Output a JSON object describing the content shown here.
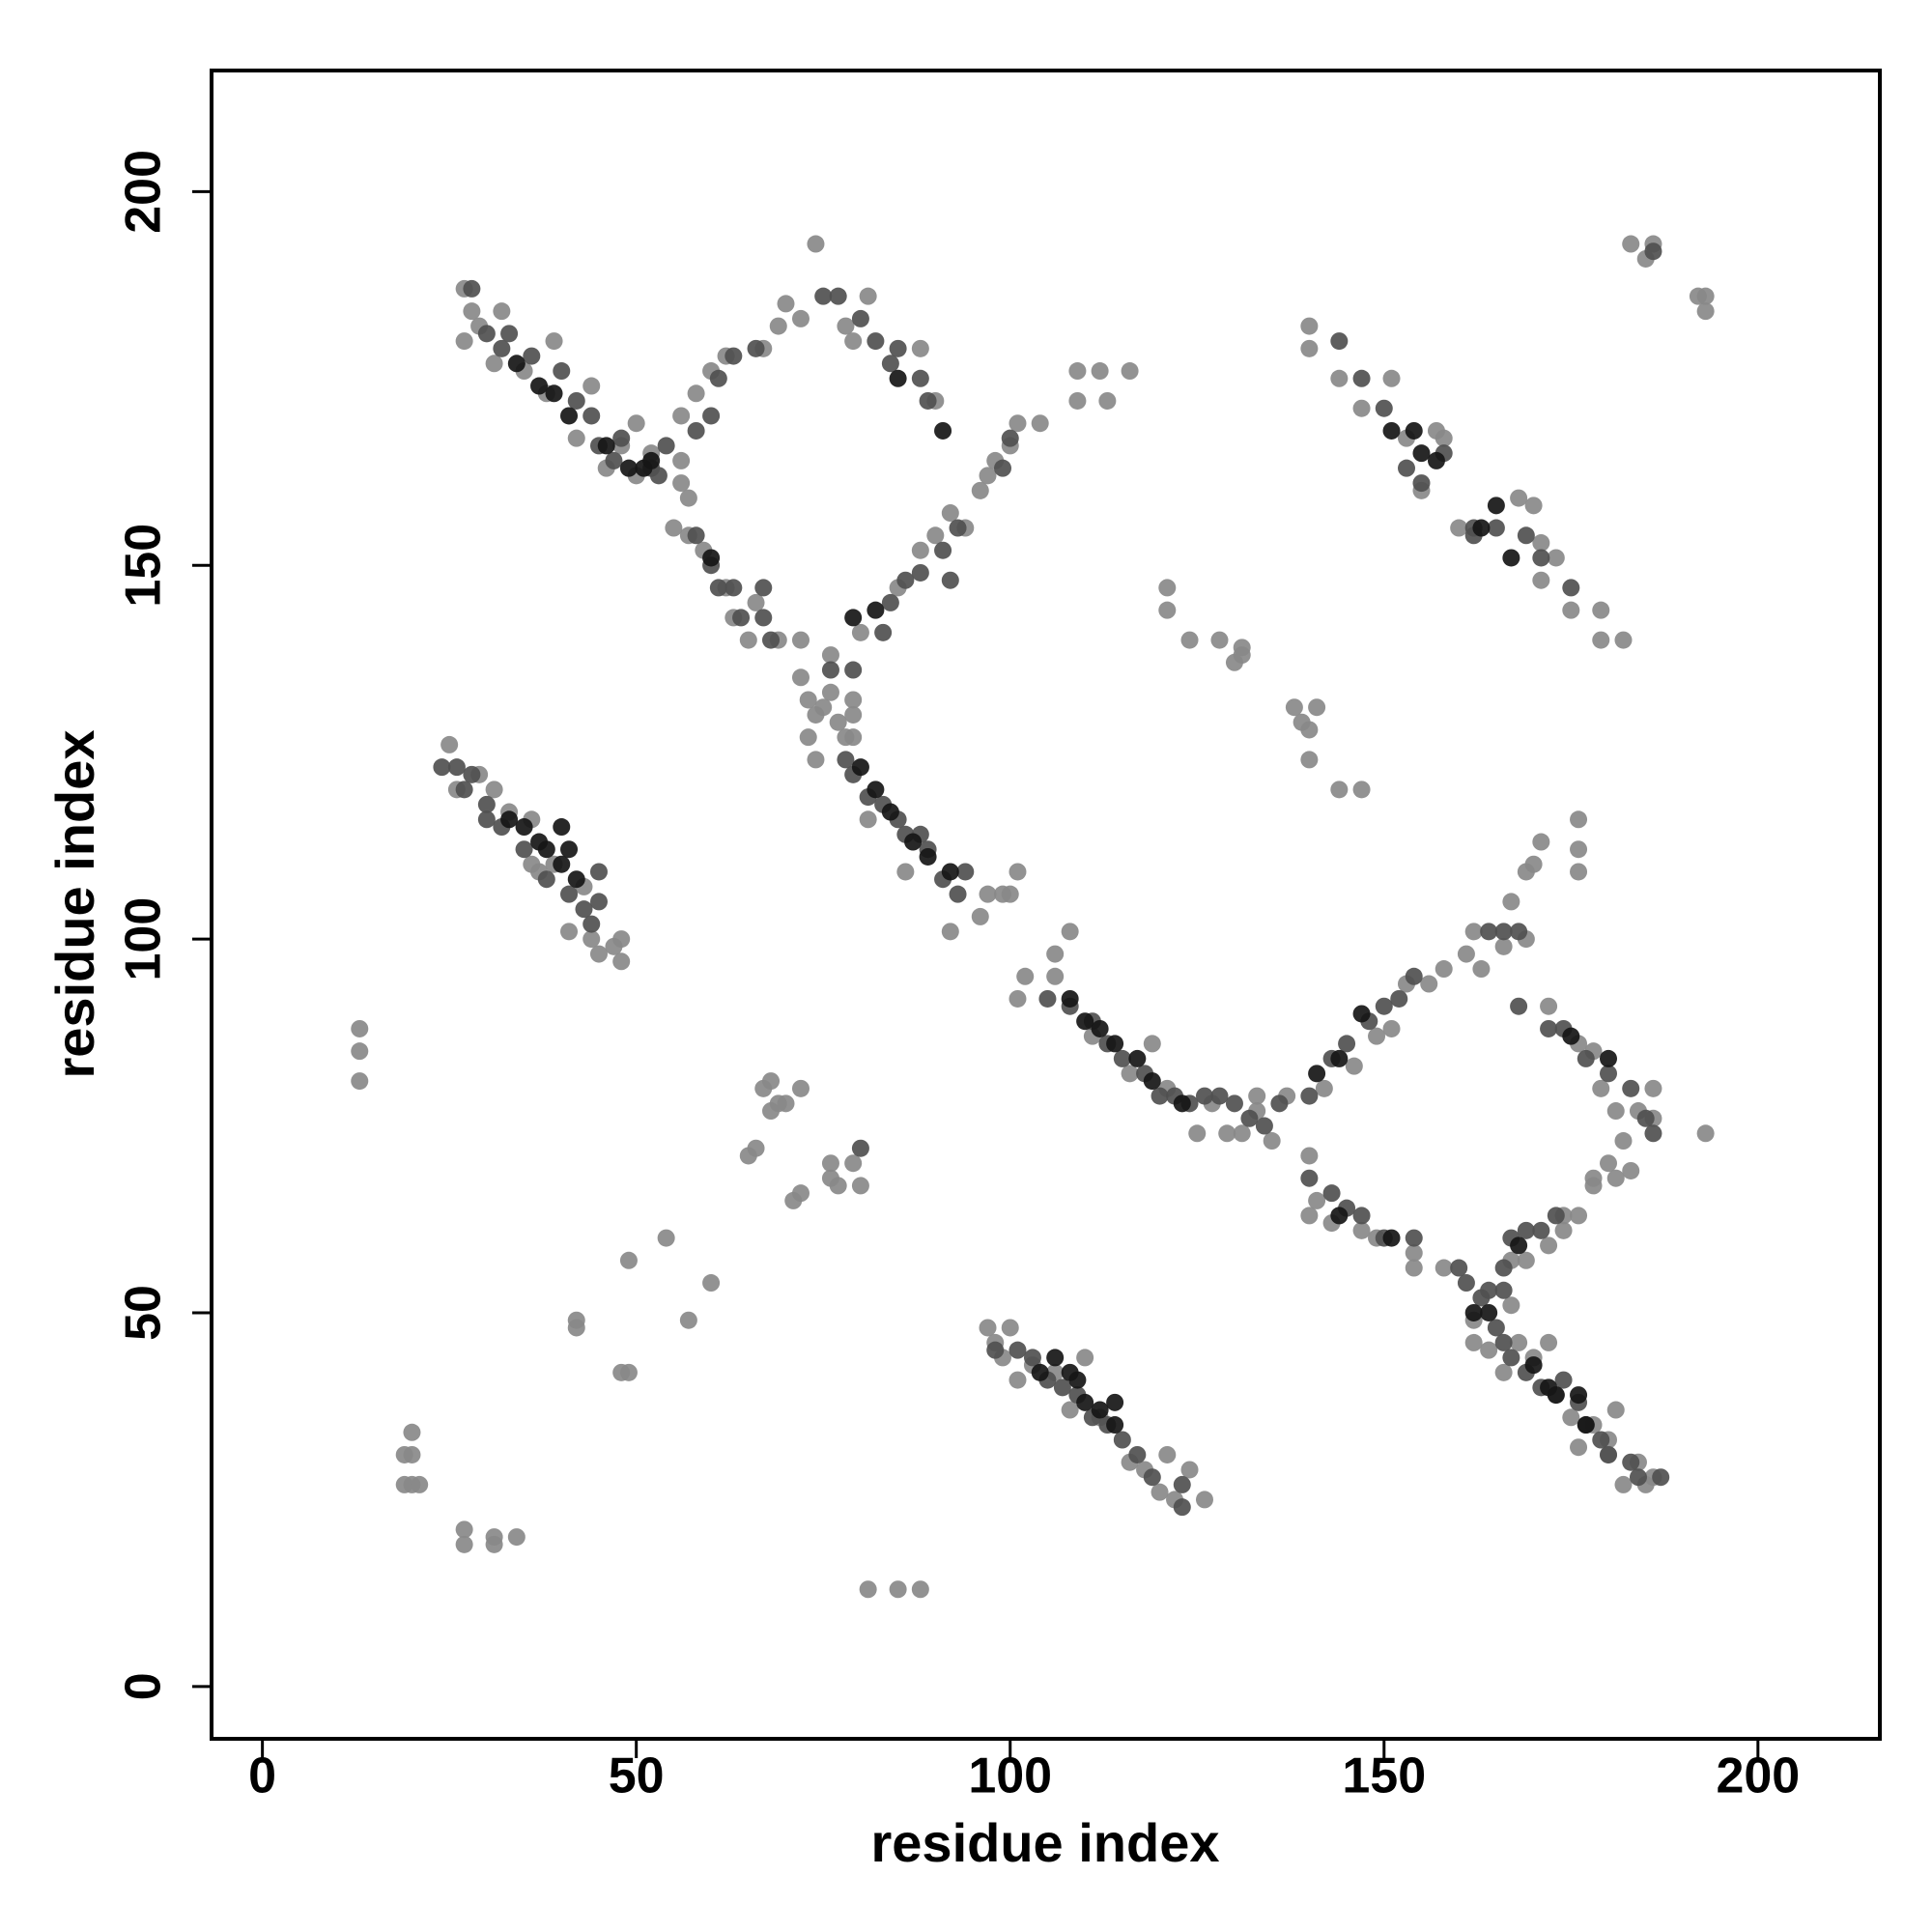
{
  "chart_data": {
    "type": "scatter",
    "xlabel": "residue index",
    "ylabel": "residue index",
    "xlim": [
      -6.8,
      216.3
    ],
    "ylim": [
      -7,
      216.2
    ],
    "xticks": [
      0,
      50,
      100,
      150,
      200
    ],
    "yticks": [
      0,
      50,
      100,
      150,
      200
    ],
    "series": [
      {
        "color": "#898989",
        "x": [
          27,
          28,
          27,
          29,
          31,
          32,
          35,
          39,
          38,
          42,
          44,
          46,
          48,
          50,
          52,
          56,
          57,
          56,
          50,
          56,
          58,
          60,
          62,
          67,
          69,
          70,
          72,
          74,
          78,
          81,
          79,
          88,
          90,
          85,
          88,
          90,
          92,
          94,
          96,
          97,
          98,
          100,
          101,
          104,
          109,
          112,
          116,
          109,
          113,
          80,
          55,
          57,
          59,
          62,
          63,
          65,
          69,
          72,
          66,
          72,
          73,
          74,
          73,
          74,
          76,
          76,
          77,
          78,
          79,
          79,
          79,
          75,
          81,
          86,
          92,
          96,
          97,
          99,
          101,
          100,
          102,
          101,
          106,
          106,
          108,
          111,
          116,
          119,
          121,
          125,
          127,
          129,
          131,
          133,
          135,
          137,
          133,
          142,
          146,
          149,
          151,
          153,
          156,
          158,
          161,
          162,
          163,
          166,
          167,
          169,
          170,
          171,
          176,
          176,
          176,
          169,
          172,
          176,
          178,
          179,
          181,
          182,
          184,
          186,
          186,
          193,
          180,
          181,
          183,
          140,
          141,
          140,
          143,
          147,
          149,
          154,
          154,
          158,
          162,
          162,
          164,
          166,
          167,
          169,
          172,
          174,
          176,
          178,
          178,
          174,
          167,
          168,
          170,
          172,
          173,
          175,
          176,
          178,
          180,
          182,
          184,
          185,
          186,
          181,
          180,
          97,
          98,
          99,
          100,
          101,
          103,
          106,
          108,
          112,
          116,
          118,
          120,
          122,
          121,
          124,
          126,
          110,
          25,
          26,
          29,
          31,
          33,
          36,
          37,
          39,
          41,
          44,
          45,
          47,
          48,
          48,
          43,
          36,
          140,
          140,
          144,
          151,
          147,
          153,
          155,
          157,
          158,
          160,
          170,
          168,
          171,
          173,
          171,
          175,
          179,
          182,
          179,
          183,
          185,
          186,
          192,
          193,
          193,
          13,
          13,
          13,
          20,
          20,
          19,
          20,
          19,
          21,
          27,
          27,
          31,
          31,
          34,
          49,
          48,
          49,
          54,
          57,
          60,
          42,
          42,
          65,
          66,
          67,
          68,
          69,
          68,
          70,
          72,
          71,
          72,
          76,
          76,
          77,
          79,
          80,
          81,
          85,
          88,
          121,
          121,
          124,
          128,
          131,
          130,
          131,
          138,
          139,
          141,
          140,
          140,
          144,
          147
        ],
        "y": [
          187,
          184,
          180,
          182,
          177,
          184,
          176,
          180,
          173,
          167,
          174,
          163,
          166,
          169,
          165,
          164,
          159,
          161,
          162,
          170,
          173,
          176,
          178,
          179,
          182,
          185,
          183,
          193,
          182,
          186,
          180,
          179,
          172,
          147,
          152,
          154,
          157,
          155,
          160,
          162,
          164,
          166,
          169,
          169,
          176,
          176,
          176,
          172,
          172,
          141,
          155,
          154,
          152,
          147,
          143,
          140,
          140,
          140,
          145,
          135,
          132,
          130,
          127,
          124,
          138,
          133,
          129,
          127,
          132,
          130,
          127,
          131,
          116,
          109,
          101,
          103,
          106,
          106,
          109,
          106,
          95,
          92,
          95,
          98,
          101,
          87,
          82,
          86,
          80,
          74,
          78,
          74,
          74,
          77,
          73,
          79,
          79,
          80,
          83,
          87,
          88,
          94,
          94,
          96,
          98,
          101,
          96,
          99,
          105,
          109,
          110,
          113,
          116,
          112,
          109,
          100,
          91,
          86,
          85,
          80,
          77,
          73,
          77,
          80,
          76,
          74,
          70,
          68,
          69,
          71,
          65,
          63,
          62,
          61,
          60,
          58,
          56,
          56,
          49,
          46,
          45,
          42,
          57,
          57,
          59,
          63,
          63,
          67,
          68,
          61,
          51,
          46,
          44,
          46,
          39,
          36,
          32,
          35,
          31,
          27,
          30,
          27,
          28,
          37,
          33,
          48,
          46,
          44,
          48,
          41,
          43,
          42,
          37,
          36,
          30,
          29,
          26,
          25,
          31,
          29,
          25,
          44,
          126,
          120,
          122,
          120,
          117,
          116,
          109,
          110,
          101,
          100,
          98,
          99,
          100,
          97,
          107,
          110,
          182,
          179,
          175,
          175,
          171,
          167,
          160,
          168,
          167,
          155,
          158,
          159,
          153,
          151,
          148,
          144,
          140,
          140,
          144,
          193,
          191,
          193,
          186,
          184,
          186,
          88,
          85,
          81,
          34,
          31,
          31,
          27,
          27,
          27,
          21,
          19,
          20,
          19,
          20,
          42,
          42,
          57,
          60,
          49,
          54,
          49,
          48,
          71,
          72,
          80,
          81,
          78,
          77,
          78,
          80,
          65,
          66,
          68,
          70,
          67,
          70,
          67,
          13,
          13,
          13,
          147,
          144,
          140,
          140,
          139,
          137,
          138,
          131,
          129,
          131,
          128,
          124,
          120,
          120
        ]
      },
      {
        "color": "#505050",
        "x": [
          28,
          30,
          32,
          33,
          36,
          40,
          42,
          44,
          45,
          47,
          48,
          52,
          54,
          53,
          58,
          60,
          61,
          63,
          66,
          75,
          77,
          80,
          82,
          84,
          85,
          88,
          89,
          83,
          84,
          86,
          88,
          91,
          93,
          99,
          100,
          92,
          58,
          60,
          61,
          63,
          64,
          67,
          67,
          68,
          76,
          79,
          78,
          79,
          81,
          83,
          85,
          86,
          88,
          89,
          91,
          93,
          94,
          105,
          108,
          111,
          113,
          115,
          118,
          120,
          122,
          124,
          126,
          128,
          130,
          132,
          134,
          136,
          140,
          143,
          145,
          148,
          150,
          152,
          154,
          164,
          166,
          168,
          168,
          172,
          174,
          177,
          180,
          183,
          185,
          186,
          140,
          143,
          145,
          147,
          150,
          154,
          160,
          161,
          163,
          165,
          166,
          164,
          166,
          167,
          169,
          171,
          173,
          166,
          167,
          169,
          171,
          174,
          176,
          177,
          179,
          180,
          183,
          184,
          187,
          98,
          101,
          103,
          105,
          107,
          109,
          111,
          113,
          115,
          117,
          119,
          123,
          123,
          24,
          26,
          27,
          28,
          30,
          30,
          32,
          35,
          38,
          41,
          43,
          44,
          45,
          45,
          144,
          147,
          150,
          155,
          153,
          162,
          165,
          169,
          171,
          175,
          162,
          158,
          186,
          80
        ],
        "y": [
          187,
          181,
          179,
          181,
          178,
          176,
          172,
          170,
          166,
          164,
          167,
          163,
          166,
          162,
          168,
          170,
          175,
          178,
          179,
          186,
          186,
          183,
          180,
          177,
          179,
          175,
          172,
          141,
          145,
          148,
          149,
          152,
          155,
          163,
          167,
          148,
          154,
          150,
          147,
          147,
          143,
          143,
          147,
          140,
          136,
          136,
          124,
          122,
          119,
          118,
          116,
          114,
          114,
          112,
          108,
          106,
          109,
          92,
          91,
          89,
          86,
          84,
          82,
          79,
          79,
          78,
          79,
          79,
          78,
          76,
          75,
          78,
          79,
          84,
          86,
          89,
          91,
          92,
          95,
          101,
          101,
          101,
          91,
          88,
          88,
          84,
          82,
          80,
          76,
          74,
          68,
          66,
          64,
          63,
          60,
          60,
          56,
          54,
          52,
          48,
          46,
          53,
          56,
          60,
          61,
          61,
          63,
          53,
          44,
          42,
          40,
          41,
          38,
          35,
          33,
          31,
          30,
          28,
          28,
          45,
          45,
          44,
          41,
          40,
          39,
          36,
          35,
          33,
          31,
          28,
          27,
          24,
          123,
          123,
          120,
          122,
          118,
          116,
          115,
          112,
          108,
          106,
          104,
          102,
          105,
          109,
          180,
          175,
          171,
          161,
          163,
          155,
          155,
          154,
          151,
          147,
          154,
          165,
          192,
          72
        ]
      },
      {
        "color": "#161616",
        "x": [
          34,
          37,
          39,
          41,
          46,
          49,
          51,
          52,
          85,
          91,
          79,
          82,
          60,
          80,
          82,
          84,
          87,
          89,
          92,
          108,
          110,
          112,
          114,
          117,
          119,
          123,
          141,
          144,
          147,
          175,
          180,
          144,
          151,
          162,
          164,
          168,
          170,
          172,
          173,
          176,
          177,
          104,
          106,
          108,
          109,
          110,
          112,
          114,
          114,
          33,
          35,
          37,
          38,
          40,
          40,
          42,
          41,
          151,
          154,
          155,
          157,
          165,
          163,
          167
        ],
        "y": [
          177,
          174,
          173,
          170,
          166,
          163,
          163,
          164,
          175,
          168,
          143,
          144,
          151,
          123,
          120,
          117,
          113,
          111,
          109,
          92,
          89,
          88,
          86,
          84,
          81,
          78,
          82,
          84,
          90,
          87,
          84,
          63,
          60,
          50,
          50,
          59,
          43,
          40,
          39,
          39,
          35,
          42,
          44,
          42,
          41,
          38,
          37,
          38,
          35,
          116,
          115,
          113,
          112,
          115,
          110,
          108,
          112,
          168,
          168,
          165,
          164,
          158,
          155,
          151
        ]
      }
    ]
  }
}
